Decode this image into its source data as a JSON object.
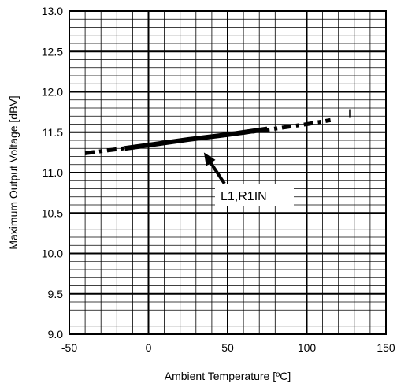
{
  "chart_data": {
    "type": "line",
    "xlabel": "Ambient Temperature [ºC]",
    "ylabel": "Maximum Output Voltage [dBV]",
    "xlim": [
      -50,
      150
    ],
    "ylim": [
      9.0,
      13.0
    ],
    "x_ticks": [
      "-50",
      "0",
      "50",
      "100",
      "150"
    ],
    "y_ticks": [
      "9.0",
      "9.5",
      "10.0",
      "10.5",
      "11.0",
      "11.5",
      "12.0",
      "12.5",
      "13.0"
    ],
    "x_tick_values": [
      -50,
      0,
      50,
      100,
      150
    ],
    "y_tick_values": [
      9.0,
      9.5,
      10.0,
      10.5,
      11.0,
      11.5,
      12.0,
      12.5,
      13.0
    ],
    "x_minor_step": 10,
    "y_minor_step": 0.1,
    "grid": true,
    "series": [
      {
        "style": "dashed",
        "x": [
          -40,
          -20,
          0,
          25,
          50,
          75,
          100,
          115
        ],
        "values": [
          11.24,
          11.29,
          11.34,
          11.41,
          11.47,
          11.53,
          11.6,
          11.65
        ]
      },
      {
        "style": "solid",
        "x": [
          -15,
          0,
          25,
          50,
          75
        ],
        "values": [
          11.3,
          11.34,
          11.41,
          11.47,
          11.54
        ]
      }
    ],
    "annotations": [
      {
        "text": "L1,R1IN",
        "arrow_to": {
          "x": 35,
          "y": 11.25
        }
      },
      {
        "text": "I",
        "at": {
          "x": 126,
          "y": 11.68
        }
      }
    ]
  }
}
